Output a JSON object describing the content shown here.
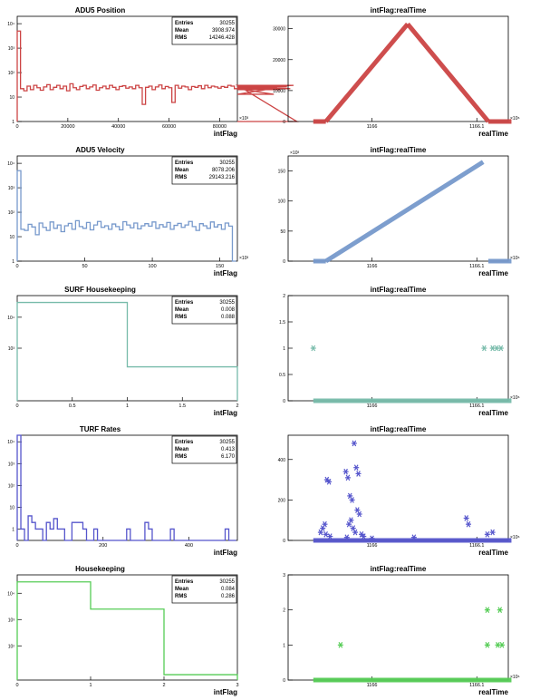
{
  "chart_data": [
    {
      "type": "histogram",
      "title": "ADU5 Position",
      "xlabel": "intFlag",
      "ylabel": "",
      "color": "#cc4444",
      "log_y": true,
      "xlim": [
        0,
        87000
      ],
      "ylim": [
        1,
        20000
      ],
      "x_ticks": [
        "0",
        "20000",
        "40000",
        "60000",
        "80000"
      ],
      "y_ticks": [
        "1",
        "10",
        "10²",
        "10³",
        "10⁴"
      ],
      "x_tick_values": [
        0,
        20000,
        40000,
        60000,
        80000
      ],
      "y_tick_values": [
        1,
        10,
        100,
        1000,
        10000
      ],
      "x_multiplier": "×10³",
      "bins": {
        "start": 0,
        "width": 1300,
        "values": [
          5000,
          22,
          18,
          28,
          20,
          30,
          24,
          19,
          26,
          32,
          20,
          25,
          30,
          22,
          28,
          18,
          35,
          24,
          20,
          27,
          30,
          22,
          26,
          31,
          19,
          24,
          28,
          22,
          30,
          25,
          20,
          27,
          29,
          23,
          26,
          22,
          30,
          24,
          5,
          25,
          28,
          20,
          26,
          31,
          22,
          27,
          24,
          6,
          30,
          23,
          28,
          26,
          20,
          27,
          25,
          29,
          22,
          30,
          24,
          28,
          26,
          23,
          27,
          25,
          30,
          28,
          22,
          26,
          24,
          29,
          27,
          23,
          25,
          28,
          30,
          24,
          26,
          22,
          13,
          24,
          20,
          28,
          26,
          22,
          30,
          1
        ]
      },
      "stats": {
        "Entries": "30255",
        "Mean": "3908.974",
        "RMS": "14246.428"
      }
    },
    {
      "type": "scatter",
      "title": "intFlag:realTime",
      "xlabel": "realTime",
      "ylabel": "",
      "color": "#cc4444",
      "xlim": [
        1165.92,
        1166.13
      ],
      "ylim": [
        0,
        34000
      ],
      "x_ticks": [
        "1166",
        "1166.1"
      ],
      "x_tick_values": [
        1166.0,
        1166.1
      ],
      "y_ticks": [
        "0",
        "10000",
        "20000",
        "30000"
      ],
      "y_tick_values": [
        0,
        10000,
        20000,
        30000
      ],
      "x_multiplier": "×10⁶",
      "y_multiplier": "",
      "segments": [
        {
          "x": [
            1165.944,
            1165.956
          ],
          "y": [
            0,
            0
          ]
        },
        {
          "x": [
            1165.956,
            1166.034
          ],
          "y": [
            0,
            31500
          ]
        },
        {
          "x": [
            1166.034,
            1166.111
          ],
          "y": [
            31500,
            0
          ]
        },
        {
          "x": [
            1166.111,
            1166.133
          ],
          "y": [
            0,
            0
          ]
        }
      ],
      "points": []
    },
    {
      "type": "histogram",
      "title": "ADU5 Velocity",
      "xlabel": "intFlag",
      "ylabel": "",
      "color": "#7799cc",
      "log_y": true,
      "xlim": [
        0,
        163
      ],
      "ylim": [
        1,
        20000
      ],
      "x_ticks": [
        "0",
        "50",
        "100",
        "150"
      ],
      "x_tick_values": [
        0,
        50,
        100,
        150
      ],
      "y_ticks": [
        "1",
        "10",
        "10²",
        "10³",
        "10⁴"
      ],
      "y_tick_values": [
        1,
        10,
        100,
        1000,
        10000
      ],
      "x_multiplier": "×10³",
      "bins": {
        "start": 0,
        "width": 2.7,
        "values": [
          5000,
          20,
          18,
          32,
          25,
          12,
          36,
          24,
          18,
          40,
          22,
          30,
          16,
          28,
          35,
          20,
          45,
          26,
          22,
          38,
          19,
          30,
          42,
          24,
          28,
          20,
          33,
          26,
          19,
          41,
          30,
          23,
          36,
          21,
          28,
          34,
          27,
          40,
          22,
          31,
          25,
          38,
          20,
          29,
          35,
          24,
          30,
          42,
          26,
          18,
          34,
          28,
          22,
          40,
          25,
          31,
          20,
          36,
          27,
          1
        ]
      },
      "stats": {
        "Entries": "30255",
        "Mean": "8078.206",
        "RMS": "29143.216"
      }
    },
    {
      "type": "scatter",
      "title": "intFlag:realTime",
      "xlabel": "realTime",
      "ylabel": "",
      "color": "#7799cc",
      "xlim": [
        1165.92,
        1166.13
      ],
      "ylim": [
        0,
        175
      ],
      "x_ticks": [
        "1166",
        "1166.1"
      ],
      "x_tick_values": [
        1166.0,
        1166.1
      ],
      "y_ticks": [
        "0",
        "50",
        "100",
        "150"
      ],
      "y_tick_values": [
        0,
        50,
        100,
        150
      ],
      "x_multiplier": "×10⁶",
      "y_multiplier": "×10³",
      "segments": [
        {
          "x": [
            1165.944,
            1165.956
          ],
          "y": [
            0,
            0
          ]
        },
        {
          "x": [
            1165.956,
            1166.106
          ],
          "y": [
            0,
            165
          ]
        },
        {
          "x": [
            1166.111,
            1166.133
          ],
          "y": [
            0,
            0
          ]
        }
      ],
      "points": []
    },
    {
      "type": "histogram",
      "title": "SURF Housekeeping",
      "xlabel": "intFlag",
      "ylabel": "",
      "color": "#77bbaa",
      "log_y": true,
      "xlim": [
        0,
        2
      ],
      "ylim": [
        20,
        50000
      ],
      "x_ticks": [
        "0",
        "0.5",
        "1",
        "1.5",
        "2"
      ],
      "x_tick_values": [
        0,
        0.5,
        1,
        1.5,
        2
      ],
      "y_ticks": [
        "10³",
        "10⁴"
      ],
      "y_tick_values": [
        1000,
        10000
      ],
      "x_multiplier": "",
      "bins": {
        "start": 0,
        "width": 1,
        "values": [
          30000,
          250
        ]
      },
      "stats": {
        "Entries": "30255",
        "Mean": "0.008",
        "RMS": "0.088"
      }
    },
    {
      "type": "scatter",
      "title": "intFlag:realTime",
      "xlabel": "realTime",
      "ylabel": "",
      "color": "#77bbaa",
      "xlim": [
        1165.92,
        1166.13
      ],
      "ylim": [
        0,
        2
      ],
      "x_ticks": [
        "1166",
        "1166.1"
      ],
      "x_tick_values": [
        1166.0,
        1166.1
      ],
      "y_ticks": [
        "0",
        "0.5",
        "1",
        "1.5",
        "2"
      ],
      "y_tick_values": [
        0,
        0.5,
        1,
        1.5,
        2
      ],
      "x_multiplier": "×10⁶",
      "y_multiplier": "",
      "segments": [
        {
          "x": [
            1165.944,
            1166.133
          ],
          "y": [
            0,
            0
          ]
        }
      ],
      "points": [
        {
          "x": 1165.944,
          "y": 1
        },
        {
          "x": 1166.107,
          "y": 1
        },
        {
          "x": 1166.115,
          "y": 1
        },
        {
          "x": 1166.119,
          "y": 1
        },
        {
          "x": 1166.123,
          "y": 1
        }
      ]
    },
    {
      "type": "histogram",
      "title": "TURF Rates",
      "xlabel": "intFlag",
      "ylabel": "",
      "color": "#5555cc",
      "log_y": true,
      "xlim": [
        0,
        513
      ],
      "ylim": [
        0.3,
        20000
      ],
      "x_ticks": [
        "0",
        "200",
        "400"
      ],
      "x_tick_values": [
        0,
        200,
        400
      ],
      "y_ticks": [
        "1",
        "10",
        "10²",
        "10³",
        "10⁴"
      ],
      "y_tick_values": [
        1,
        10,
        100,
        1000,
        10000
      ],
      "x_multiplier": "",
      "bins": {
        "start": 0,
        "width": 8.5,
        "values": [
          20000,
          1,
          0,
          4,
          2,
          1,
          1,
          0,
          2,
          1,
          3,
          1,
          1,
          0,
          0,
          2,
          2,
          2,
          1,
          0,
          0,
          1,
          0,
          0,
          0,
          0,
          0,
          0,
          0,
          0,
          1,
          0,
          0,
          0,
          0,
          2,
          1,
          0,
          0,
          0,
          0,
          0,
          1,
          0,
          0,
          0,
          0,
          0,
          0,
          0,
          0,
          0,
          0,
          0,
          0,
          0,
          0,
          1,
          0,
          0
        ]
      },
      "stats": {
        "Entries": "30255",
        "Mean": "0.413",
        "RMS": "6.170"
      }
    },
    {
      "type": "scatter",
      "title": "intFlag:realTime",
      "xlabel": "realTime",
      "ylabel": "",
      "color": "#5555cc",
      "xlim": [
        1165.92,
        1166.13
      ],
      "ylim": [
        0,
        520
      ],
      "x_ticks": [
        "1166",
        "1166.1"
      ],
      "x_tick_values": [
        1166.0,
        1166.1
      ],
      "y_ticks": [
        "0",
        "200",
        "400"
      ],
      "y_tick_values": [
        0,
        200,
        400
      ],
      "x_multiplier": "×10⁶",
      "y_multiplier": "",
      "segments": [
        {
          "x": [
            1165.944,
            1166.133
          ],
          "y": [
            0,
            0
          ]
        }
      ],
      "points": [
        {
          "x": 1165.951,
          "y": 40
        },
        {
          "x": 1165.953,
          "y": 60
        },
        {
          "x": 1165.955,
          "y": 80
        },
        {
          "x": 1165.957,
          "y": 300
        },
        {
          "x": 1165.959,
          "y": 290
        },
        {
          "x": 1165.956,
          "y": 30
        },
        {
          "x": 1165.96,
          "y": 20
        },
        {
          "x": 1165.975,
          "y": 340
        },
        {
          "x": 1165.977,
          "y": 310
        },
        {
          "x": 1165.979,
          "y": 220
        },
        {
          "x": 1165.981,
          "y": 200
        },
        {
          "x": 1165.983,
          "y": 480
        },
        {
          "x": 1165.985,
          "y": 360
        },
        {
          "x": 1165.987,
          "y": 330
        },
        {
          "x": 1165.986,
          "y": 150
        },
        {
          "x": 1165.988,
          "y": 130
        },
        {
          "x": 1165.98,
          "y": 100
        },
        {
          "x": 1165.978,
          "y": 80
        },
        {
          "x": 1165.982,
          "y": 60
        },
        {
          "x": 1165.984,
          "y": 40
        },
        {
          "x": 1165.99,
          "y": 30
        },
        {
          "x": 1165.992,
          "y": 20
        },
        {
          "x": 1165.976,
          "y": 15
        },
        {
          "x": 1166.0,
          "y": 10
        },
        {
          "x": 1166.04,
          "y": 15
        },
        {
          "x": 1166.09,
          "y": 110
        },
        {
          "x": 1166.092,
          "y": 80
        },
        {
          "x": 1166.11,
          "y": 30
        },
        {
          "x": 1166.115,
          "y": 40
        }
      ]
    },
    {
      "type": "histogram",
      "title": "Housekeeping",
      "xlabel": "intFlag",
      "ylabel": "",
      "color": "#55cc55",
      "log_y": true,
      "xlim": [
        0,
        3
      ],
      "ylim": [
        5,
        50000
      ],
      "x_ticks": [
        "0",
        "1",
        "2",
        "3"
      ],
      "x_tick_values": [
        0,
        1,
        2,
        3
      ],
      "y_ticks": [
        "10²",
        "10³",
        "10⁴"
      ],
      "y_tick_values": [
        100,
        1000,
        10000
      ],
      "x_multiplier": "",
      "bins": {
        "start": 0,
        "width": 1,
        "values": [
          27000,
          2500,
          8
        ]
      },
      "stats": {
        "Entries": "30255",
        "Mean": "0.084",
        "RMS": "0.286"
      }
    },
    {
      "type": "scatter",
      "title": "intFlag:realTime",
      "xlabel": "realTime",
      "ylabel": "",
      "color": "#55cc55",
      "xlim": [
        1165.92,
        1166.13
      ],
      "ylim": [
        0,
        3
      ],
      "x_ticks": [
        "1166",
        "1166.1"
      ],
      "x_tick_values": [
        1166.0,
        1166.1
      ],
      "y_ticks": [
        "0",
        "1",
        "2",
        "3"
      ],
      "y_tick_values": [
        0,
        1,
        2,
        3
      ],
      "x_multiplier": "×10⁶",
      "y_multiplier": "",
      "segments": [
        {
          "x": [
            1165.944,
            1166.133
          ],
          "y": [
            0,
            0
          ]
        }
      ],
      "points": [
        {
          "x": 1165.97,
          "y": 1
        },
        {
          "x": 1166.11,
          "y": 2
        },
        {
          "x": 1166.11,
          "y": 1
        },
        {
          "x": 1166.122,
          "y": 2
        },
        {
          "x": 1166.12,
          "y": 1
        },
        {
          "x": 1166.124,
          "y": 1
        }
      ]
    }
  ]
}
